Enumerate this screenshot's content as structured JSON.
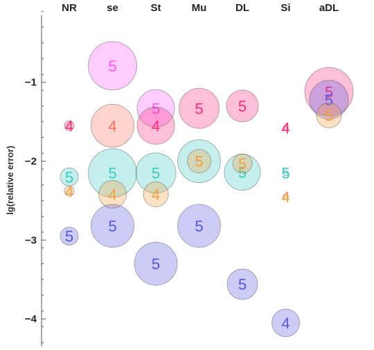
{
  "chart_data": {
    "type": "bubble",
    "title": "",
    "ylabel": "lg(relative error)",
    "xlabel": "",
    "categories": [
      "NR",
      "se",
      "St",
      "Mu",
      "DL",
      "Si",
      "aDL"
    ],
    "ylim": [
      -4.35,
      -0.15
    ],
    "yticks": [
      -1,
      -2,
      -3,
      -4
    ],
    "grid": false,
    "colors": {
      "magenta": "#ff55ff",
      "crimson": "#ff2d7a",
      "salmon": "#ff6f5e",
      "teal": "#3cc9c0",
      "orange": "#f5a040",
      "blue": "#5555e0"
    },
    "points": [
      {
        "cat": "se",
        "y": -0.79,
        "size": 1.75,
        "label": "5",
        "color": "magenta"
      },
      {
        "cat": "St",
        "y": -1.33,
        "size": 1.35,
        "label": "5",
        "color": "magenta"
      },
      {
        "cat": "Mu",
        "y": -1.33,
        "size": 1.45,
        "label": "5",
        "color": "crimson"
      },
      {
        "cat": "DL",
        "y": -1.3,
        "size": 1.15,
        "label": "5",
        "color": "crimson"
      },
      {
        "cat": "aDL",
        "y": -1.12,
        "size": 1.75,
        "label": "5",
        "color": "crimson"
      },
      {
        "cat": "aDL",
        "y": -1.22,
        "size": 1.4,
        "label": "5",
        "color": "blue"
      },
      {
        "cat": "aDL",
        "y": -1.42,
        "size": 0.9,
        "label": "5",
        "color": "orange"
      },
      {
        "cat": "NR",
        "y": -1.55,
        "size": 0.35,
        "label": "4",
        "color": "crimson"
      },
      {
        "cat": "se",
        "y": -1.55,
        "size": 1.55,
        "label": "4",
        "color": "salmon"
      },
      {
        "cat": "St",
        "y": -1.55,
        "size": 1.35,
        "label": "4",
        "color": "crimson"
      },
      {
        "cat": "Si",
        "y": -1.58,
        "size": 0.2,
        "label": "4",
        "color": "crimson"
      },
      {
        "cat": "se",
        "y": -2.15,
        "size": 1.75,
        "label": "5",
        "color": "teal"
      },
      {
        "cat": "St",
        "y": -2.15,
        "size": 1.45,
        "label": "5",
        "color": "teal"
      },
      {
        "cat": "Mu",
        "y": -2.0,
        "size": 1.55,
        "label": "5",
        "color": "teal"
      },
      {
        "cat": "Mu",
        "y": -2.0,
        "size": 0.85,
        "label": "5",
        "color": "orange"
      },
      {
        "cat": "DL",
        "y": -2.14,
        "size": 1.3,
        "label": "5",
        "color": "teal"
      },
      {
        "cat": "DL",
        "y": -2.03,
        "size": 0.7,
        "label": "5",
        "color": "orange"
      },
      {
        "cat": "NR",
        "y": -2.2,
        "size": 0.65,
        "label": "5",
        "color": "teal"
      },
      {
        "cat": "Si",
        "y": -2.15,
        "size": 0.2,
        "label": "5",
        "color": "teal"
      },
      {
        "cat": "NR",
        "y": -2.38,
        "size": 0.35,
        "label": "4",
        "color": "orange"
      },
      {
        "cat": "se",
        "y": -2.42,
        "size": 1.0,
        "label": "4",
        "color": "orange"
      },
      {
        "cat": "St",
        "y": -2.42,
        "size": 0.9,
        "label": "4",
        "color": "orange"
      },
      {
        "cat": "Si",
        "y": -2.45,
        "size": 0.2,
        "label": "4",
        "color": "orange"
      },
      {
        "cat": "se",
        "y": -2.82,
        "size": 1.55,
        "label": "5",
        "color": "blue"
      },
      {
        "cat": "Mu",
        "y": -2.82,
        "size": 1.55,
        "label": "5",
        "color": "blue"
      },
      {
        "cat": "NR",
        "y": -2.95,
        "size": 0.65,
        "label": "5",
        "color": "blue"
      },
      {
        "cat": "St",
        "y": -3.3,
        "size": 1.55,
        "label": "5",
        "color": "blue"
      },
      {
        "cat": "DL",
        "y": -3.56,
        "size": 1.1,
        "label": "5",
        "color": "blue"
      },
      {
        "cat": "Si",
        "y": -4.05,
        "size": 1.0,
        "label": "4",
        "color": "blue"
      }
    ]
  }
}
